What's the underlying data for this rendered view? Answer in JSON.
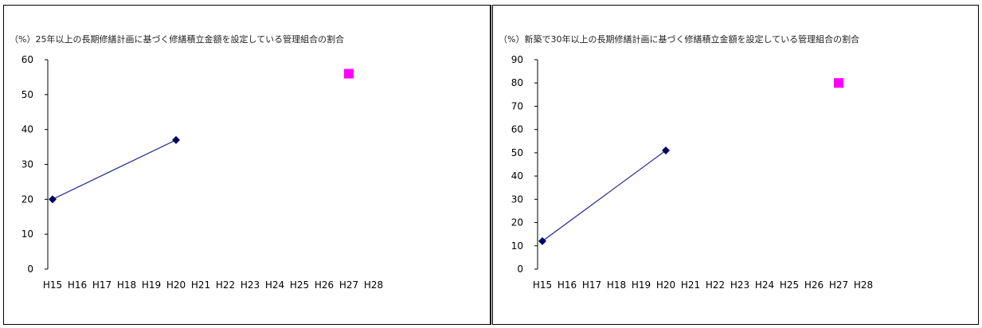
{
  "chart_data": [
    {
      "type": "line",
      "title": "（%）25年以上の長期修繕計画に基づく修繕積立金額を設定している管理組合の割合",
      "xlabel": "",
      "ylabel": "",
      "categories": [
        "H15",
        "H16",
        "H17",
        "H18",
        "H19",
        "H20",
        "H21",
        "H22",
        "H23",
        "H24",
        "H25",
        "H26",
        "H27",
        "H28"
      ],
      "ylim": [
        0,
        60
      ],
      "yticks": [
        0,
        10,
        20,
        30,
        40,
        50,
        60
      ],
      "grid": false,
      "series": [
        {
          "x": [
            "H15",
            "H20"
          ],
          "values": [
            20,
            37
          ],
          "marker": "diamond",
          "color": "#000066",
          "line_color": "#333399"
        },
        {
          "x": [
            "H27"
          ],
          "values": [
            56
          ],
          "marker": "square",
          "color": "#ff00ff"
        }
      ]
    },
    {
      "type": "line",
      "title": "（%）新築で30年以上の長期修繕計画に基づく修繕積立金額を設定している管理組合の割合",
      "xlabel": "",
      "ylabel": "",
      "categories": [
        "H15",
        "H16",
        "H17",
        "H18",
        "H19",
        "H20",
        "H21",
        "H22",
        "H23",
        "H24",
        "H25",
        "H26",
        "H27",
        "H28"
      ],
      "ylim": [
        0,
        90
      ],
      "yticks": [
        0,
        10,
        20,
        30,
        40,
        50,
        60,
        70,
        80,
        90
      ],
      "grid": false,
      "series": [
        {
          "x": [
            "H15",
            "H20"
          ],
          "values": [
            12,
            51
          ],
          "marker": "diamond",
          "color": "#000066",
          "line_color": "#333399"
        },
        {
          "x": [
            "H27"
          ],
          "values": [
            80
          ],
          "marker": "square",
          "color": "#ff00ff"
        }
      ]
    }
  ]
}
